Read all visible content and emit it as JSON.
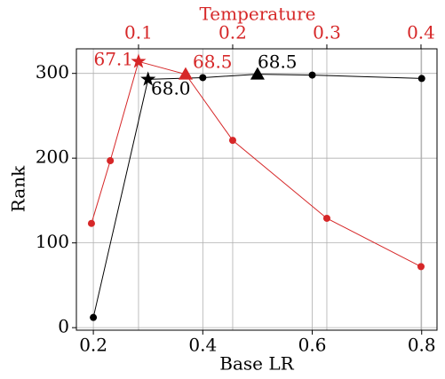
{
  "chart_data": {
    "type": "line",
    "xlabel": "Base LR",
    "ylabel": "Rank",
    "x2label": "Temperature",
    "xlim": [
      0.169,
      0.828
    ],
    "xticks": [
      0.2,
      0.4,
      0.6,
      0.8
    ],
    "x2lim": [
      0.034,
      0.417
    ],
    "x2ticks": [
      0.1,
      0.2,
      0.3,
      0.4
    ],
    "ylim": [
      -3,
      329
    ],
    "yticks": [
      0,
      100,
      200,
      300
    ],
    "grid": true,
    "series": [
      {
        "color": "#000000",
        "axis": "x",
        "x": [
          0.2,
          0.3,
          0.4,
          0.5,
          0.6,
          0.8
        ],
        "values": [
          12,
          293,
          295,
          299,
          298,
          294
        ],
        "markers": [
          "circle",
          "star",
          "circle",
          "triangle",
          "circle",
          "circle"
        ]
      },
      {
        "color": "#d62728",
        "axis": "x2",
        "x": [
          0.05,
          0.07,
          0.1,
          0.15,
          0.2,
          0.3,
          0.4
        ],
        "values": [
          123,
          197,
          314,
          299,
          221,
          129,
          72
        ],
        "markers": [
          "circle",
          "circle",
          "star",
          "triangle",
          "circle",
          "circle",
          "circle"
        ]
      }
    ],
    "annotations": [
      "67.1",
      "68.5",
      "68.5",
      "68.0"
    ]
  }
}
